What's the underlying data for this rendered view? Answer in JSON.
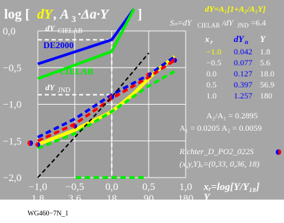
{
  "colors": {
    "panel": "#a6a6a6",
    "plot_bg": "#9d9d9d",
    "white": "#ffffff",
    "yellow": "#ffff00",
    "blue": "#0000ff",
    "green": "#00ee00",
    "red": "#ff0000",
    "black": "#000000"
  },
  "texts": {
    "ylabel_main": "log [",
    "ylabel_dY": "dY",
    "ylabel_rest": ", A",
    "ylabel_sub3": "3",
    "ylabel_dot": "·Δa·Y",
    "ylabel_close": "]",
    "top_formula": "dY=A₁[1+A₂/A₁Y]",
    "sn_formula": "Sₙ=dY",
    "sn_formula_sub": "CIELAB",
    "sn_formula_tail": "/dY",
    "sn_formula_sub2": "JND",
    "sn_formula_val": "=6.4",
    "dY_cielab": "dY",
    "dY_cielab_sub": "CIELAB",
    "dY_jnd": "dY",
    "dY_jnd_sub": "JND",
    "label_de2000": "DE2000",
    "label_cielab": "CIELAB",
    "table_h_xr": "x",
    "table_h_xr_sub": "r",
    "table_h_dYn": "dY",
    "table_h_dYn_sub": "n",
    "table_h_Y": "Y",
    "a2a1": "A₂/A₁ = 0.2895",
    "a1a2": "A₁ = 0.0205  A₂ = 0.0059",
    "richter": "Richter_D_PO2_022S",
    "xyY": "(x,y,Y)ᵤ=(0,33, 0,36, 18)",
    "xaxis_label": "xᵣ=log[Y/Y₁₈]",
    "xaxis_Y": "Y",
    "footer": "WG460−7N_1"
  },
  "table_rows": [
    {
      "xr": "−1.0",
      "dYn": "0.042",
      "Y": "1.8"
    },
    {
      "xr": "−0.5",
      "dYn": "0.077",
      "Y": "5.6"
    },
    {
      "xr": "0.0",
      "dYn": "0.127",
      "Y": "18.0"
    },
    {
      "xr": "0.5",
      "dYn": "0.397",
      "Y": "56.9"
    },
    {
      "xr": "1.0",
      "dYn": "1.257",
      "Y": "180"
    }
  ],
  "chart_data": {
    "type": "line",
    "xlabel": "xᵣ=log[Y/Y₁₈]",
    "ylabel": "log [dY, A₃·Δa·Y]",
    "xlim": [
      -1.0,
      1.0
    ],
    "ylim": [
      -2.0,
      0.0
    ],
    "x_ticks": [
      "−1,0",
      "−0,5",
      "0,0",
      "0,5",
      "1,0"
    ],
    "x_ticks2": [
      "1,8",
      "3,6",
      "18",
      "90",
      "180"
    ],
    "y_ticks": [
      "0,0",
      "−0,5",
      "−1,0",
      "−1,5",
      "−2,0"
    ],
    "series": [
      {
        "name": "DE2000",
        "color": "blue",
        "style": "solid",
        "x": [
          -1.0,
          0.0,
          0.3
        ],
        "y": [
          -0.45,
          -0.12,
          0.3
        ]
      },
      {
        "name": "CIELAB",
        "color": "green",
        "style": "solid",
        "x": [
          -1.0,
          0.0,
          0.3
        ],
        "y": [
          -0.65,
          -0.28,
          0.3
        ]
      },
      {
        "color": "yellow",
        "style": "solid",
        "x": [
          -1.0,
          -0.5,
          0.0,
          0.3,
          0.6,
          0.85
        ],
        "y": [
          -1.55,
          -1.35,
          -1.1,
          -0.85,
          -0.55,
          -0.35
        ]
      },
      {
        "color": "blue",
        "style": "dashed",
        "x": [
          -1.0,
          -0.5,
          0.0,
          0.5,
          0.85
        ],
        "y": [
          -1.45,
          -1.2,
          -0.87,
          -0.6,
          -0.35
        ]
      },
      {
        "color": "red",
        "style": "dashed",
        "x": [
          -1.0,
          -0.5,
          0.0,
          0.5,
          0.85
        ],
        "y": [
          -1.5,
          -1.27,
          -0.92,
          -0.63,
          -0.4
        ]
      },
      {
        "color": "green",
        "style": "dashed",
        "x": [
          -1.0,
          -0.5,
          0.0,
          0.5,
          0.85
        ],
        "y": [
          -1.6,
          -1.4,
          -1.1,
          -0.75,
          -0.55
        ]
      },
      {
        "color": "black",
        "style": "dashed",
        "x": [
          -1.0,
          0.0,
          0.5
        ],
        "y": [
          -2.0,
          -0.9,
          -0.3
        ]
      }
    ],
    "guides": {
      "cielab_level": -0.12,
      "jnd_level": -0.87,
      "x_at": 0.0
    },
    "markers": [
      {
        "x": -1.0,
        "y": -1.55
      },
      {
        "x": -0.5,
        "y": -1.3
      },
      {
        "x": 0.0,
        "y": -0.9
      },
      {
        "x": 0.5,
        "y": -0.6
      },
      {
        "x": 0.85,
        "y": -0.4
      }
    ]
  }
}
